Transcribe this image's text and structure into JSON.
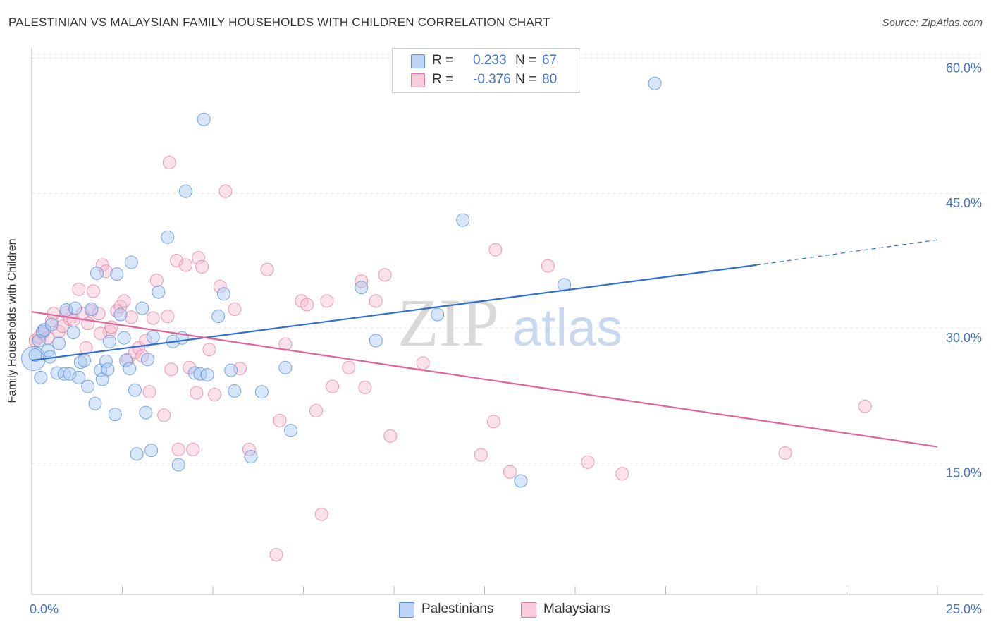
{
  "header": {
    "title": "PALESTINIAN VS MALAYSIAN FAMILY HOUSEHOLDS WITH CHILDREN CORRELATION CHART",
    "source": "Source: ZipAtlas.com"
  },
  "watermark": {
    "zip": "ZIP",
    "atlas": "atlas"
  },
  "legend": {
    "r_label": "R =",
    "n_label": "N =",
    "rows": [
      {
        "name": "Palestinians",
        "r": "0.233",
        "n": "67"
      },
      {
        "name": "Malaysians",
        "r": "-0.376",
        "n": "80"
      }
    ]
  },
  "colors": {
    "blue_fill": "#a9c8f5",
    "blue_stroke": "#5b8fd8",
    "blue_line": "#2f6fd0",
    "pink_fill": "#f7bcd0",
    "pink_stroke": "#e07aa0",
    "pink_line": "#e0649a",
    "tick_text": "#4472c4"
  },
  "chart_data": {
    "type": "scatter",
    "title": "PALESTINIAN VS MALAYSIAN FAMILY HOUSEHOLDS WITH CHILDREN CORRELATION CHART",
    "xlabel": "",
    "ylabel": "Family Households with Children",
    "xlim": [
      0,
      25
    ],
    "ylim": [
      0,
      62
    ],
    "x_tick_labels": [
      "0.0%",
      "25.0%"
    ],
    "y_ticks": [
      15,
      30,
      45,
      60
    ],
    "y_tick_labels": [
      "15.0%",
      "30.0%",
      "45.0%",
      "60.0%"
    ],
    "grid": true,
    "series": [
      {
        "name": "Palestinians",
        "color": "#5b8fd8",
        "trend": {
          "x0": 0.0,
          "y0": 26.4,
          "x1": 20.0,
          "y1": 37.0,
          "dash_to_x": 25.0,
          "dash_to_y": 39.8
        },
        "points": [
          [
            0.05,
            26.6,
            16
          ],
          [
            0.1,
            27.0,
            8
          ],
          [
            0.2,
            28.6,
            8
          ],
          [
            0.3,
            29.6,
            8
          ],
          [
            0.35,
            29.8,
            8
          ],
          [
            0.45,
            27.5,
            8
          ],
          [
            0.5,
            26.8,
            8
          ],
          [
            0.55,
            30.4,
            8
          ],
          [
            0.7,
            25.0,
            8
          ],
          [
            0.75,
            28.3,
            8
          ],
          [
            0.9,
            24.9,
            8
          ],
          [
            0.95,
            32.0,
            8
          ],
          [
            1.05,
            24.9,
            8
          ],
          [
            1.15,
            29.5,
            8
          ],
          [
            1.2,
            32.2,
            8
          ],
          [
            1.3,
            24.5,
            8
          ],
          [
            1.35,
            26.2,
            8
          ],
          [
            1.45,
            26.4,
            8
          ],
          [
            1.55,
            23.5,
            8
          ],
          [
            1.65,
            32.1,
            8
          ],
          [
            1.75,
            21.6,
            8
          ],
          [
            1.8,
            36.1,
            8
          ],
          [
            1.9,
            25.3,
            8
          ],
          [
            1.95,
            24.3,
            8
          ],
          [
            2.05,
            26.3,
            8
          ],
          [
            2.1,
            25.4,
            8
          ],
          [
            2.15,
            28.5,
            8
          ],
          [
            2.3,
            20.4,
            8
          ],
          [
            2.35,
            36.0,
            8
          ],
          [
            2.45,
            31.5,
            8
          ],
          [
            2.55,
            28.9,
            8
          ],
          [
            2.6,
            26.4,
            8
          ],
          [
            2.7,
            25.5,
            8
          ],
          [
            2.75,
            37.3,
            8
          ],
          [
            2.85,
            23.1,
            8
          ],
          [
            2.9,
            16.0,
            8
          ],
          [
            3.05,
            32.2,
            8
          ],
          [
            3.15,
            20.6,
            8
          ],
          [
            3.3,
            16.4,
            8
          ],
          [
            3.35,
            29.0,
            8
          ],
          [
            3.2,
            26.5,
            8
          ],
          [
            3.5,
            34.0,
            8
          ],
          [
            3.75,
            40.1,
            8
          ],
          [
            3.9,
            28.5,
            8
          ],
          [
            4.05,
            14.8,
            8
          ],
          [
            4.15,
            28.9,
            8
          ],
          [
            4.25,
            45.2,
            8
          ],
          [
            4.5,
            25.0,
            8
          ],
          [
            4.65,
            24.9,
            8
          ],
          [
            4.75,
            53.2,
            8
          ],
          [
            4.85,
            24.8,
            8
          ],
          [
            5.15,
            31.3,
            8
          ],
          [
            5.3,
            33.8,
            8
          ],
          [
            5.5,
            25.3,
            8
          ],
          [
            5.6,
            23.0,
            8
          ],
          [
            6.05,
            15.7,
            8
          ],
          [
            6.35,
            22.9,
            8
          ],
          [
            7.15,
            18.6,
            8
          ],
          [
            7.0,
            25.6,
            8
          ],
          [
            9.1,
            34.5,
            8
          ],
          [
            9.5,
            28.6,
            8
          ],
          [
            11.2,
            31.5,
            8
          ],
          [
            11.9,
            42.0,
            8
          ],
          [
            13.5,
            13.0,
            8
          ],
          [
            14.7,
            34.8,
            8
          ],
          [
            17.2,
            57.2,
            8
          ],
          [
            0.25,
            24.5,
            8
          ]
        ]
      },
      {
        "name": "Malaysians",
        "color": "#e07aa0",
        "trend": {
          "x0": 0.0,
          "y0": 31.8,
          "x1": 25.0,
          "y1": 16.8
        },
        "points": [
          [
            0.1,
            28.6,
            8
          ],
          [
            0.2,
            29.0,
            8
          ],
          [
            0.3,
            29.4,
            8
          ],
          [
            0.45,
            28.9,
            8
          ],
          [
            0.55,
            30.8,
            8
          ],
          [
            0.6,
            31.6,
            8
          ],
          [
            0.75,
            29.6,
            8
          ],
          [
            0.85,
            30.2,
            8
          ],
          [
            0.95,
            31.7,
            8
          ],
          [
            1.05,
            31.0,
            8
          ],
          [
            1.15,
            30.9,
            8
          ],
          [
            1.3,
            34.3,
            8
          ],
          [
            1.4,
            31.6,
            8
          ],
          [
            1.5,
            27.8,
            8
          ],
          [
            1.55,
            30.5,
            8
          ],
          [
            1.65,
            31.9,
            8
          ],
          [
            1.7,
            34.1,
            8
          ],
          [
            1.85,
            31.6,
            8
          ],
          [
            1.95,
            37.0,
            8
          ],
          [
            2.05,
            36.3,
            8
          ],
          [
            2.15,
            29.6,
            8
          ],
          [
            2.2,
            30.1,
            8
          ],
          [
            2.35,
            31.9,
            8
          ],
          [
            2.45,
            32.4,
            8
          ],
          [
            2.55,
            33.0,
            8
          ],
          [
            2.65,
            26.5,
            8
          ],
          [
            2.75,
            31.2,
            8
          ],
          [
            2.85,
            27.3,
            8
          ],
          [
            2.95,
            27.8,
            8
          ],
          [
            3.05,
            26.9,
            8
          ],
          [
            3.15,
            28.6,
            8
          ],
          [
            3.25,
            22.9,
            8
          ],
          [
            3.35,
            31.1,
            8
          ],
          [
            3.45,
            35.3,
            8
          ],
          [
            3.65,
            20.3,
            8
          ],
          [
            3.75,
            31.3,
            8
          ],
          [
            3.85,
            25.4,
            8
          ],
          [
            4.0,
            37.5,
            8
          ],
          [
            4.05,
            16.5,
            8
          ],
          [
            4.25,
            37.0,
            8
          ],
          [
            4.35,
            25.6,
            8
          ],
          [
            4.45,
            16.5,
            8
          ],
          [
            4.6,
            37.8,
            8
          ],
          [
            4.7,
            36.8,
            8
          ],
          [
            4.9,
            27.6,
            8
          ],
          [
            5.05,
            22.6,
            8
          ],
          [
            5.2,
            34.6,
            8
          ],
          [
            5.35,
            45.2,
            8
          ],
          [
            5.6,
            32.1,
            8
          ],
          [
            5.75,
            25.5,
            8
          ],
          [
            3.8,
            48.4,
            8
          ],
          [
            6.0,
            16.5,
            8
          ],
          [
            6.5,
            36.5,
            8
          ],
          [
            6.75,
            4.8,
            8
          ],
          [
            6.85,
            19.7,
            8
          ],
          [
            7.0,
            28.2,
            8
          ],
          [
            7.45,
            33.0,
            8
          ],
          [
            7.6,
            32.6,
            8
          ],
          [
            7.85,
            20.8,
            8
          ],
          [
            8.0,
            9.3,
            8
          ],
          [
            8.15,
            33.0,
            8
          ],
          [
            8.3,
            23.5,
            8
          ],
          [
            8.75,
            25.6,
            8
          ],
          [
            9.1,
            35.2,
            8
          ],
          [
            9.2,
            23.4,
            8
          ],
          [
            9.5,
            33.0,
            8
          ],
          [
            9.75,
            35.9,
            8
          ],
          [
            9.9,
            18.0,
            8
          ],
          [
            10.8,
            26.1,
            8
          ],
          [
            12.4,
            15.9,
            8
          ],
          [
            12.75,
            19.6,
            8
          ],
          [
            12.8,
            38.7,
            8
          ],
          [
            13.2,
            14.0,
            8
          ],
          [
            14.25,
            36.9,
            8
          ],
          [
            15.35,
            15.1,
            8
          ],
          [
            16.3,
            13.8,
            8
          ],
          [
            20.8,
            16.1,
            8
          ],
          [
            23.0,
            21.3,
            8
          ],
          [
            4.55,
            22.8,
            8
          ],
          [
            1.9,
            29.4,
            8
          ]
        ]
      }
    ]
  }
}
